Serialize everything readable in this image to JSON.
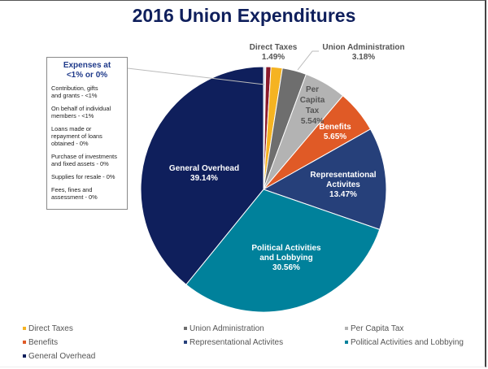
{
  "chart_data": {
    "type": "pie",
    "title": "2016 Union Expenditures",
    "start_angle": "top, clockwise",
    "slices": [
      {
        "name": "Contribution, gifts and grants",
        "value": 0.3,
        "color": "#dbe3ef",
        "label": null,
        "in_legend": false
      },
      {
        "name": "On behalf of individual members",
        "value": 0.67,
        "color": "#8b1a2b",
        "label": null,
        "in_legend": false
      },
      {
        "name": "Direct Taxes",
        "value": 1.49,
        "color": "#f5b322",
        "label": "Direct Taxes",
        "pct": "1.49%",
        "in_legend": true
      },
      {
        "name": "Union Administration",
        "value": 3.18,
        "color": "#6e6e6e",
        "label": "Union Administration",
        "pct": "3.18%",
        "in_legend": true
      },
      {
        "name": "Per Capita Tax",
        "value": 5.54,
        "color": "#b3b3b3",
        "label": "Per Capita Tax",
        "pct": "5.54%",
        "in_legend": true
      },
      {
        "name": "Benefits",
        "value": 5.65,
        "color": "#e05a26",
        "label": "Benefits",
        "pct": "5.65%",
        "in_legend": true
      },
      {
        "name": "Representational Activites",
        "value": 13.47,
        "color": "#26407a",
        "label": "Representational Activites",
        "pct": "13.47%",
        "in_legend": true
      },
      {
        "name": "Political Activities and Lobbying",
        "value": 30.56,
        "color": "#00819b",
        "label": "Political Activities and Lobbying",
        "pct": "30.56%",
        "in_legend": true
      },
      {
        "name": "General Overhead",
        "value": 39.14,
        "color": "#0f1f5c",
        "label": "General Overhead",
        "pct": "39.14%",
        "in_legend": true
      }
    ],
    "legend_placement": "bottom"
  },
  "labels": {
    "direct_taxes": {
      "name": "Direct Taxes",
      "pct": "1.49%"
    },
    "union_admin": {
      "name": "Union Administration",
      "pct": "3.18%"
    },
    "per_capita": {
      "l1": "Per",
      "l2": "Capita",
      "l3": "Tax",
      "pct": "5.54%"
    },
    "benefits": {
      "name": "Benefits",
      "pct": "5.65%"
    },
    "representational": {
      "l1": "Representational",
      "l2": "Activites",
      "pct": "13.47%"
    },
    "political": {
      "l1": "Political Activities",
      "l2": "and Lobbying",
      "pct": "30.56%"
    },
    "general": {
      "name": "General Overhead",
      "pct": "39.14%"
    }
  },
  "callout": {
    "title_l1": "Expenses at",
    "title_l2": "<1% or 0%",
    "items": [
      {
        "l1": "Contribution, gifts",
        "l2": "and grants - <1%"
      },
      {
        "l1": "On behalf of individual",
        "l2": "members - <1%"
      },
      {
        "l1": "Loans made or",
        "l2": "repayment of loans",
        "l3": "obtained - 0%"
      },
      {
        "l1": "Purchase of investments",
        "l2": "and fixed assets - 0%"
      },
      {
        "l1": "Supplies for resale - 0%"
      },
      {
        "l1": "Fees, fines and",
        "l2": "assessment - 0%"
      }
    ]
  },
  "legend": [
    {
      "label": "Direct Taxes",
      "color": "#f5b322"
    },
    {
      "label": "Union Administration",
      "color": "#6e6e6e"
    },
    {
      "label": "Per Capita Tax",
      "color": "#b3b3b3"
    },
    {
      "label": "Benefits",
      "color": "#e05a26"
    },
    {
      "label": "Representational Activites",
      "color": "#26407a"
    },
    {
      "label": "Political Activities and Lobbying",
      "color": "#00819b"
    },
    {
      "label": "General Overhead",
      "color": "#0f1f5c"
    }
  ]
}
